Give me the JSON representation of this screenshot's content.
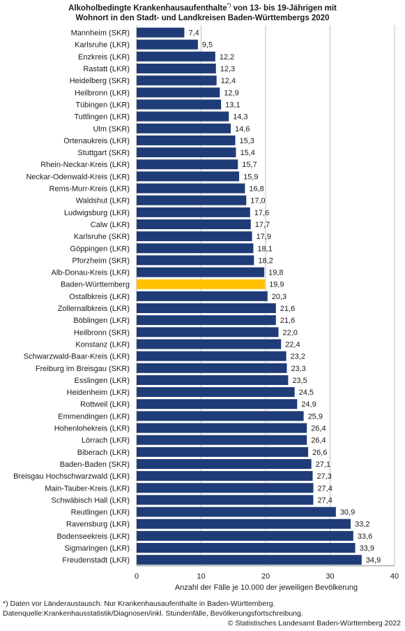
{
  "chart_data": {
    "type": "bar",
    "orientation": "horizontal",
    "title_line1": "Alkoholbedingte Krankenhausaufenthalte",
    "title_sup": "*)",
    "title_line1_cont": " von 13- bis 19-Jährigen mit",
    "title_line2": "Wohnort in den Stadt- und Landkreisen Baden-Württembergs 2020",
    "xlabel": "Anzahl der Fälle je 10.000 der jeweiligen Bevölkerung",
    "xlim": [
      0,
      40
    ],
    "xticks": [
      "0",
      "10",
      "20",
      "30",
      "40"
    ],
    "grid": "vertical",
    "bar_color": "#1f3c78",
    "highlight_color": "#ffc000",
    "highlight_category": "Baden-Württemberg",
    "categories": [
      "Mannheim (SKR)",
      "Karlsruhe (LKR)",
      "Enzkreis (LKR)",
      "Rastatt (LKR)",
      "Heidelberg (SKR)",
      "Heilbronn (LKR)",
      "Tübingen (LKR)",
      "Tuttlingen (LKR)",
      "Ulm (SKR)",
      "Ortenaukreis (LKR)",
      "Stuttgart (SKR)",
      "Rhein-Neckar-Kreis (LKR)",
      "Neckar-Odenwald-Kreis (LKR)",
      "Rems-Murr-Kreis (LKR)",
      "Waldshut (LKR)",
      "Ludwigsburg (LKR)",
      "Calw (LKR)",
      "Karlsruhe (SKR)",
      "Göppingen (LKR)",
      "Pforzheim (SKR)",
      "Alb-Donau-Kreis (LKR)",
      "Baden-Württemberg",
      "Ostalbkreis (LKR)",
      "Zollernalbkreis (LKR)",
      "Böblingen (LKR)",
      "Heilbronn (SKR)",
      "Konstanz (LKR)",
      "Schwarzwald-Baar-Kreis (LKR)",
      "Freiburg im Breisgau (SKR)",
      "Esslingen (LKR)",
      "Heidenheim (LKR)",
      "Rottweil (LKR)",
      "Emmendingen (LKR)",
      "Hohenlohekreis (LKR)",
      "Lörrach (LKR)",
      "Biberach (LKR)",
      "Baden-Baden (SKR)",
      "Breisgau Hochschwarzwald (LKR)",
      "Main-Tauber-Kreis (LKR)",
      "Schwäbisch Hall (LKR)",
      "Reutlingen (LKR)",
      "Ravensburg (LKR)",
      "Bodenseekreis (LKR)",
      "Sigmaringen (LKR)",
      "Freudenstadt (LKR)"
    ],
    "values": [
      7.4,
      9.5,
      12.2,
      12.3,
      12.4,
      12.9,
      13.1,
      14.3,
      14.6,
      15.3,
      15.4,
      15.7,
      15.9,
      16.8,
      17.0,
      17.6,
      17.7,
      17.9,
      18.1,
      18.2,
      19.8,
      19.9,
      20.3,
      21.6,
      21.6,
      22.0,
      22.4,
      23.2,
      23.3,
      23.5,
      24.5,
      24.9,
      25.9,
      26.4,
      26.4,
      26.6,
      27.1,
      27.3,
      27.4,
      27.4,
      30.9,
      33.2,
      33.6,
      33.9,
      34.9
    ],
    "value_labels": [
      "7,4",
      "9,5",
      "12,2",
      "12,3",
      "12,4",
      "12,9",
      "13,1",
      "14,3",
      "14,6",
      "15,3",
      "15,4",
      "15,7",
      "15,9",
      "16,8",
      "17,0",
      "17,6",
      "17,7",
      "17,9",
      "18,1",
      "18,2",
      "19,8",
      "19,9",
      "20,3",
      "21,6",
      "21,6",
      "22,0",
      "22,4",
      "23,2",
      "23,3",
      "23,5",
      "24,5",
      "24,9",
      "25,9",
      "26,4",
      "26,4",
      "26,6",
      "27,1",
      "27,3",
      "27,4",
      "27,4",
      "30,9",
      "33,2",
      "33,6",
      "33,9",
      "34,9"
    ]
  },
  "footnote": "*) Daten vor Länderaustausch: Nur Krankenhausaufenthalte in Baden-Württemberg.",
  "source": "Datenquelle:Krankenhausstatistik/Diagnosen/inkl. Stundenfälle, Bevölkerungsfortschreibung.",
  "copyright": "© Statistisches Landesamt Baden-Württemberg 2022"
}
